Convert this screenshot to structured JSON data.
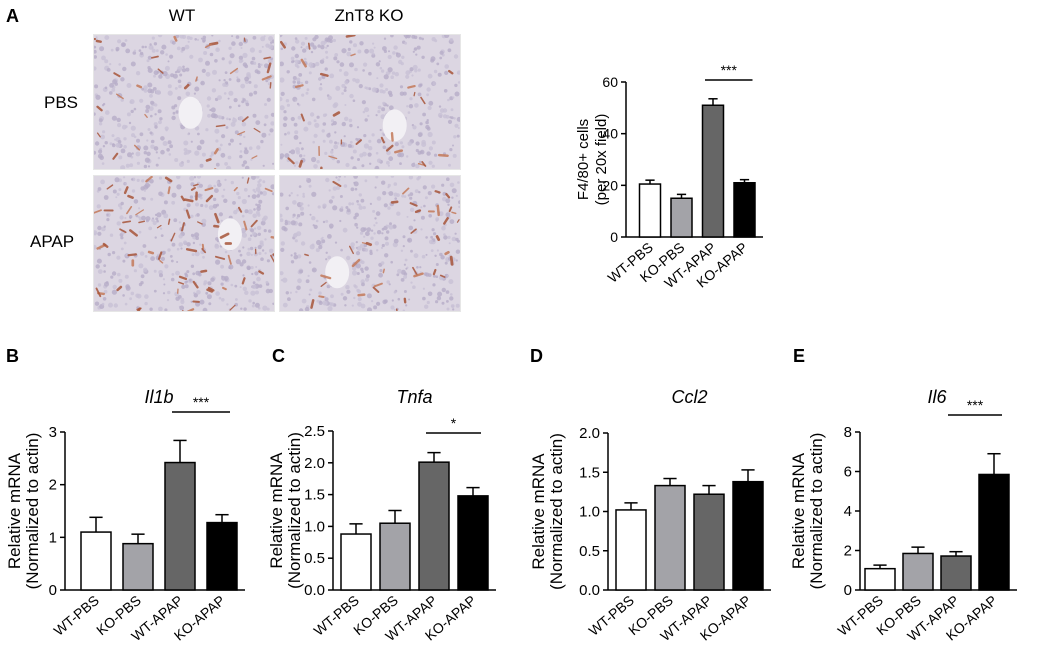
{
  "panels": {
    "A": "A",
    "B": "B",
    "C": "C",
    "D": "D",
    "E": "E"
  },
  "micrograph": {
    "col_labels": [
      "WT",
      "ZnT8 KO"
    ],
    "row_labels": [
      "PBS",
      "APAP"
    ]
  },
  "colors": {
    "WT-PBS": "#ffffff",
    "KO-PBS": "#a3a3a8",
    "WT-APAP": "#666666",
    "KO-APAP": "#000000"
  },
  "chart_data": [
    {
      "id": "A",
      "type": "bar",
      "title": "",
      "ylabel": [
        "F4/80+ cells",
        "(per 20x field)"
      ],
      "ylim": [
        0,
        60
      ],
      "yticks": [
        "0",
        "20",
        "40",
        "60"
      ],
      "categories": [
        "WT-PBS",
        "KO-PBS",
        "WT-APAP",
        "KO-APAP"
      ],
      "values": [
        20.5,
        15,
        51,
        21
      ],
      "errors": [
        1.5,
        1.5,
        2.5,
        1.2
      ],
      "significance": [
        {
          "from": 2,
          "to": 3,
          "label": "***"
        }
      ]
    },
    {
      "id": "B",
      "type": "bar",
      "title": "Il1b",
      "ylabel": [
        "Relative mRNA",
        "(Normalized to actin)"
      ],
      "ylim": [
        0,
        3
      ],
      "yticks": [
        "0",
        "1",
        "2",
        "3"
      ],
      "categories": [
        "WT-PBS",
        "KO-PBS",
        "WT-APAP",
        "KO-APAP"
      ],
      "values": [
        1.1,
        0.88,
        2.42,
        1.28
      ],
      "errors": [
        0.28,
        0.18,
        0.42,
        0.15
      ],
      "significance": [
        {
          "from": 2,
          "to": 3,
          "label": "***"
        }
      ]
    },
    {
      "id": "C",
      "type": "bar",
      "title": "Tnfa",
      "ylabel": [
        "Relative mRNA",
        "(Normalized to actin)"
      ],
      "ylim": [
        0,
        2.5
      ],
      "yticks": [
        "0.0",
        "0.5",
        "1.0",
        "1.5",
        "2.0",
        "2.5"
      ],
      "categories": [
        "WT-PBS",
        "KO-PBS",
        "WT-APAP",
        "KO-APAP"
      ],
      "values": [
        0.88,
        1.05,
        2.01,
        1.48
      ],
      "errors": [
        0.16,
        0.2,
        0.15,
        0.13
      ],
      "significance": [
        {
          "from": 2,
          "to": 3,
          "label": "*"
        }
      ]
    },
    {
      "id": "D",
      "type": "bar",
      "title": "Ccl2",
      "ylabel": [
        "Relative mRNA",
        "(Normalized to actin)"
      ],
      "ylim": [
        0,
        2
      ],
      "yticks": [
        "0.0",
        "0.5",
        "1.0",
        "1.5",
        "2.0"
      ],
      "categories": [
        "WT-PBS",
        "KO-PBS",
        "WT-APAP",
        "KO-APAP"
      ],
      "values": [
        1.02,
        1.33,
        1.22,
        1.38
      ],
      "errors": [
        0.09,
        0.09,
        0.11,
        0.15
      ],
      "significance": []
    },
    {
      "id": "E",
      "type": "bar",
      "title": "Il6",
      "ylabel": [
        "Relative mRNA",
        "(Normalized to actin)"
      ],
      "ylim": [
        0,
        8
      ],
      "yticks": [
        "0",
        "2",
        "4",
        "6",
        "8"
      ],
      "categories": [
        "WT-PBS",
        "KO-PBS",
        "WT-APAP",
        "KO-APAP"
      ],
      "values": [
        1.08,
        1.85,
        1.72,
        5.85
      ],
      "errors": [
        0.18,
        0.32,
        0.22,
        1.05
      ],
      "significance": [
        {
          "from": 2,
          "to": 3,
          "label": "***"
        }
      ]
    }
  ]
}
